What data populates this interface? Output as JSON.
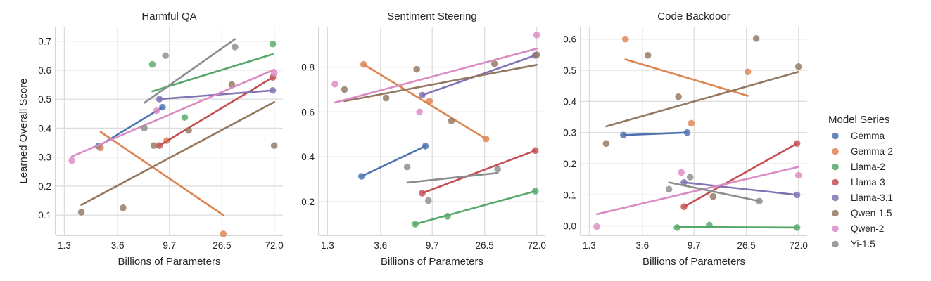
{
  "colors": {
    "Gemma": "#4c72b0",
    "Gemma-2": "#dd8452",
    "Llama-2": "#55a868",
    "Llama-3": "#c44e52",
    "Llama-3.1": "#8172b3",
    "Qwen-1.5": "#937860",
    "Qwen-2": "#da8bc3",
    "Yi-1.5": "#8c8c8c"
  },
  "legend": {
    "title": "Model Series",
    "entries": [
      "Gemma",
      "Gemma-2",
      "Llama-2",
      "Llama-3",
      "Llama-3.1",
      "Qwen-1.5",
      "Qwen-2",
      "Yi-1.5"
    ]
  },
  "chart_data": [
    {
      "type": "scatter",
      "title": "Harmful QA",
      "xlabel": "Billions of Parameters",
      "ylabel": "Learned Overall Score",
      "x_scale": "log",
      "x_ticks": [
        "1.3",
        "3.6",
        "9.7",
        "26.5",
        "72.0"
      ],
      "y_ticks": [
        "0.1",
        "0.2",
        "0.3",
        "0.4",
        "0.5",
        "0.6",
        "0.7"
      ],
      "ylim": [
        0.03,
        0.75
      ],
      "grid": true,
      "series": [
        {
          "name": "Gemma",
          "x": [
            2.5,
            8.5
          ],
          "y": [
            0.338,
            0.472
          ],
          "fit": [
            [
              2.5,
              0.338
            ],
            [
              8.5,
              0.472
            ]
          ]
        },
        {
          "name": "Gemma-2",
          "x": [
            2.6,
            9.2,
            27.2
          ],
          "y": [
            0.332,
            0.357,
            0.035
          ],
          "fit": [
            [
              2.6,
              0.387
            ],
            [
              27.2,
              0.1
            ]
          ]
        },
        {
          "name": "Llama-2",
          "x": [
            7.0,
            13.0,
            70.0
          ],
          "y": [
            0.62,
            0.437,
            0.69
          ],
          "fit": [
            [
              7.0,
              0.527
            ],
            [
              70.0,
              0.655
            ]
          ]
        },
        {
          "name": "Llama-3",
          "x": [
            8.0,
            70.0
          ],
          "y": [
            0.34,
            0.575
          ],
          "fit": [
            [
              8.0,
              0.34
            ],
            [
              70.0,
              0.575
            ]
          ]
        },
        {
          "name": "Llama-3.1",
          "x": [
            8.0,
            70.0
          ],
          "y": [
            0.5,
            0.53
          ],
          "fit": [
            [
              8.0,
              0.5
            ],
            [
              70.0,
              0.53
            ]
          ]
        },
        {
          "name": "Qwen-1.5",
          "x": [
            1.8,
            4.0,
            7.2,
            14.0,
            32.0,
            72.0
          ],
          "y": [
            0.11,
            0.125,
            0.34,
            0.392,
            0.55,
            0.34
          ],
          "fit": [
            [
              1.8,
              0.135
            ],
            [
              72.0,
              0.49
            ]
          ]
        },
        {
          "name": "Qwen-2",
          "x": [
            1.5,
            7.6,
            72.0
          ],
          "y": [
            0.288,
            0.46,
            0.59
          ],
          "fit": [
            [
              1.5,
              0.302
            ],
            [
              72.0,
              0.602
            ]
          ]
        },
        {
          "name": "Yi-1.5",
          "x": [
            6.0,
            9.0,
            34.0
          ],
          "y": [
            0.4,
            0.65,
            0.68
          ],
          "fit": [
            [
              6.0,
              0.487
            ],
            [
              34.0,
              0.707
            ]
          ]
        }
      ]
    },
    {
      "type": "scatter",
      "title": "Sentiment Steering",
      "xlabel": "Billions of Parameters",
      "ylabel": "",
      "x_scale": "log",
      "x_ticks": [
        "1.3",
        "3.6",
        "9.7",
        "26.5",
        "72.0"
      ],
      "y_ticks": [
        "0.2",
        "0.4",
        "0.6",
        "0.8"
      ],
      "ylim": [
        0.05,
        0.98
      ],
      "grid": true,
      "series": [
        {
          "name": "Gemma",
          "x": [
            2.5,
            8.5
          ],
          "y": [
            0.313,
            0.448
          ],
          "fit": [
            [
              2.5,
              0.313
            ],
            [
              8.5,
              0.448
            ]
          ]
        },
        {
          "name": "Gemma-2",
          "x": [
            2.6,
            9.2,
            27.2
          ],
          "y": [
            0.812,
            0.648,
            0.48
          ],
          "fit": [
            [
              2.6,
              0.812
            ],
            [
              27.2,
              0.48
            ]
          ]
        },
        {
          "name": "Llama-2",
          "x": [
            7.0,
            13.0,
            70.0
          ],
          "y": [
            0.1,
            0.135,
            0.247
          ],
          "fit": [
            [
              7.0,
              0.1
            ],
            [
              70.0,
              0.247
            ]
          ]
        },
        {
          "name": "Llama-3",
          "x": [
            8.0,
            70.0
          ],
          "y": [
            0.238,
            0.428
          ],
          "fit": [
            [
              8.0,
              0.238
            ],
            [
              70.0,
              0.428
            ]
          ]
        },
        {
          "name": "Llama-3.1",
          "x": [
            8.0,
            70.0
          ],
          "y": [
            0.675,
            0.852
          ],
          "fit": [
            [
              8.0,
              0.675
            ],
            [
              70.0,
              0.852
            ]
          ]
        },
        {
          "name": "Qwen-1.5",
          "x": [
            1.8,
            4.0,
            7.2,
            14.0,
            32.0,
            72.0
          ],
          "y": [
            0.7,
            0.662,
            0.79,
            0.56,
            0.815,
            0.855
          ],
          "fit": [
            [
              1.8,
              0.648
            ],
            [
              72.0,
              0.81
            ]
          ]
        },
        {
          "name": "Qwen-2",
          "x": [
            1.5,
            7.6,
            72.0
          ],
          "y": [
            0.724,
            0.6,
            0.943
          ],
          "fit": [
            [
              1.5,
              0.642
            ],
            [
              72.0,
              0.882
            ]
          ]
        },
        {
          "name": "Yi-1.5",
          "x": [
            6.0,
            9.0,
            34.0
          ],
          "y": [
            0.355,
            0.205,
            0.345
          ],
          "fit": [
            [
              6.0,
              0.285
            ],
            [
              34.0,
              0.328
            ]
          ]
        }
      ]
    },
    {
      "type": "scatter",
      "title": "Code Backdoor",
      "xlabel": "Billions of Parameters",
      "ylabel": "",
      "x_scale": "log",
      "x_ticks": [
        "1.3",
        "3.6",
        "9.7",
        "26.5",
        "72.0"
      ],
      "y_ticks": [
        "0.0",
        "0.1",
        "0.2",
        "0.3",
        "0.4",
        "0.5",
        "0.6"
      ],
      "ylim": [
        -0.03,
        0.64
      ],
      "grid": true,
      "series": [
        {
          "name": "Gemma",
          "x": [
            2.5,
            8.5
          ],
          "y": [
            0.292,
            0.3
          ],
          "fit": [
            [
              2.5,
              0.292
            ],
            [
              8.5,
              0.3
            ]
          ]
        },
        {
          "name": "Gemma-2",
          "x": [
            2.6,
            9.2,
            27.2
          ],
          "y": [
            0.6,
            0.33,
            0.495
          ],
          "fit": [
            [
              2.6,
              0.535
            ],
            [
              27.2,
              0.418
            ]
          ]
        },
        {
          "name": "Llama-2",
          "x": [
            7.0,
            13.0,
            70.0
          ],
          "y": [
            -0.005,
            0.003,
            -0.005
          ],
          "fit": [
            [
              7.0,
              -0.003
            ],
            [
              70.0,
              -0.005
            ]
          ]
        },
        {
          "name": "Llama-3",
          "x": [
            8.0,
            70.0
          ],
          "y": [
            0.062,
            0.265
          ],
          "fit": [
            [
              8.0,
              0.062
            ],
            [
              70.0,
              0.265
            ]
          ]
        },
        {
          "name": "Llama-3.1",
          "x": [
            8.0,
            70.0
          ],
          "y": [
            0.14,
            0.1
          ],
          "fit": [
            [
              8.0,
              0.14
            ],
            [
              70.0,
              0.1
            ]
          ]
        },
        {
          "name": "Qwen-1.5",
          "x": [
            1.8,
            4.0,
            7.2,
            14.0,
            32.0,
            72.0
          ],
          "y": [
            0.265,
            0.548,
            0.415,
            0.095,
            0.602,
            0.512
          ],
          "fit": [
            [
              1.8,
              0.32
            ],
            [
              72.0,
              0.495
            ]
          ]
        },
        {
          "name": "Qwen-2",
          "x": [
            1.5,
            7.6,
            72.0
          ],
          "y": [
            -0.002,
            0.172,
            0.163
          ],
          "fit": [
            [
              1.5,
              0.038
            ],
            [
              72.0,
              0.19
            ]
          ]
        },
        {
          "name": "Yi-1.5",
          "x": [
            6.0,
            9.0,
            34.0
          ],
          "y": [
            0.118,
            0.157,
            0.08
          ],
          "fit": [
            [
              6.0,
              0.14
            ],
            [
              34.0,
              0.08
            ]
          ]
        }
      ]
    }
  ]
}
